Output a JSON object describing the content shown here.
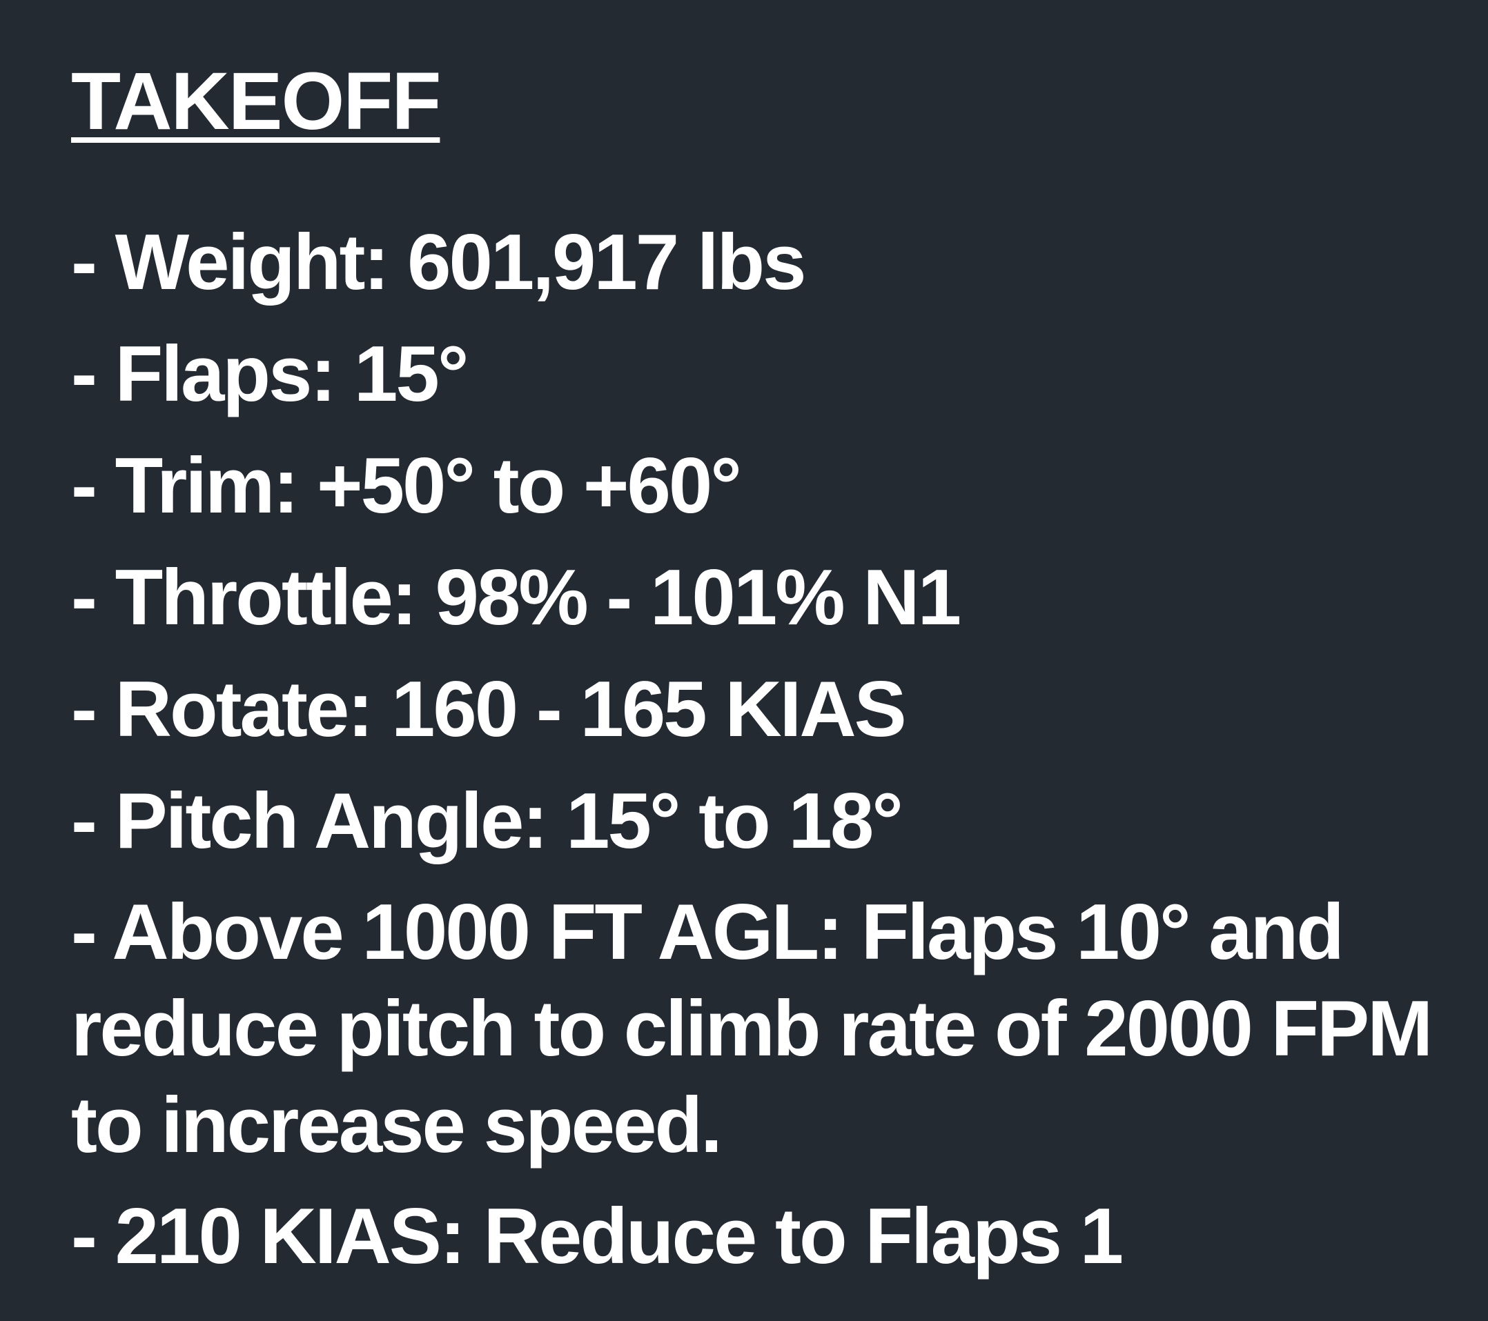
{
  "title": "TAKEOFF",
  "items": [
    "- Weight:  601,917 lbs",
    "- Flaps: 15°",
    "- Trim: +50° to +60°",
    "- Throttle: 98% - 101% N1",
    "- Rotate: 160 - 165 KIAS",
    "- Pitch Angle:  15° to 18°",
    "- Above 1000 FT AGL:  Flaps 10° and reduce pitch to climb rate of 2000 FPM to increase speed.",
    "- 210 KIAS:  Reduce to Flaps 1"
  ],
  "colors": {
    "background": "#232a32",
    "text": "#ffffff"
  }
}
